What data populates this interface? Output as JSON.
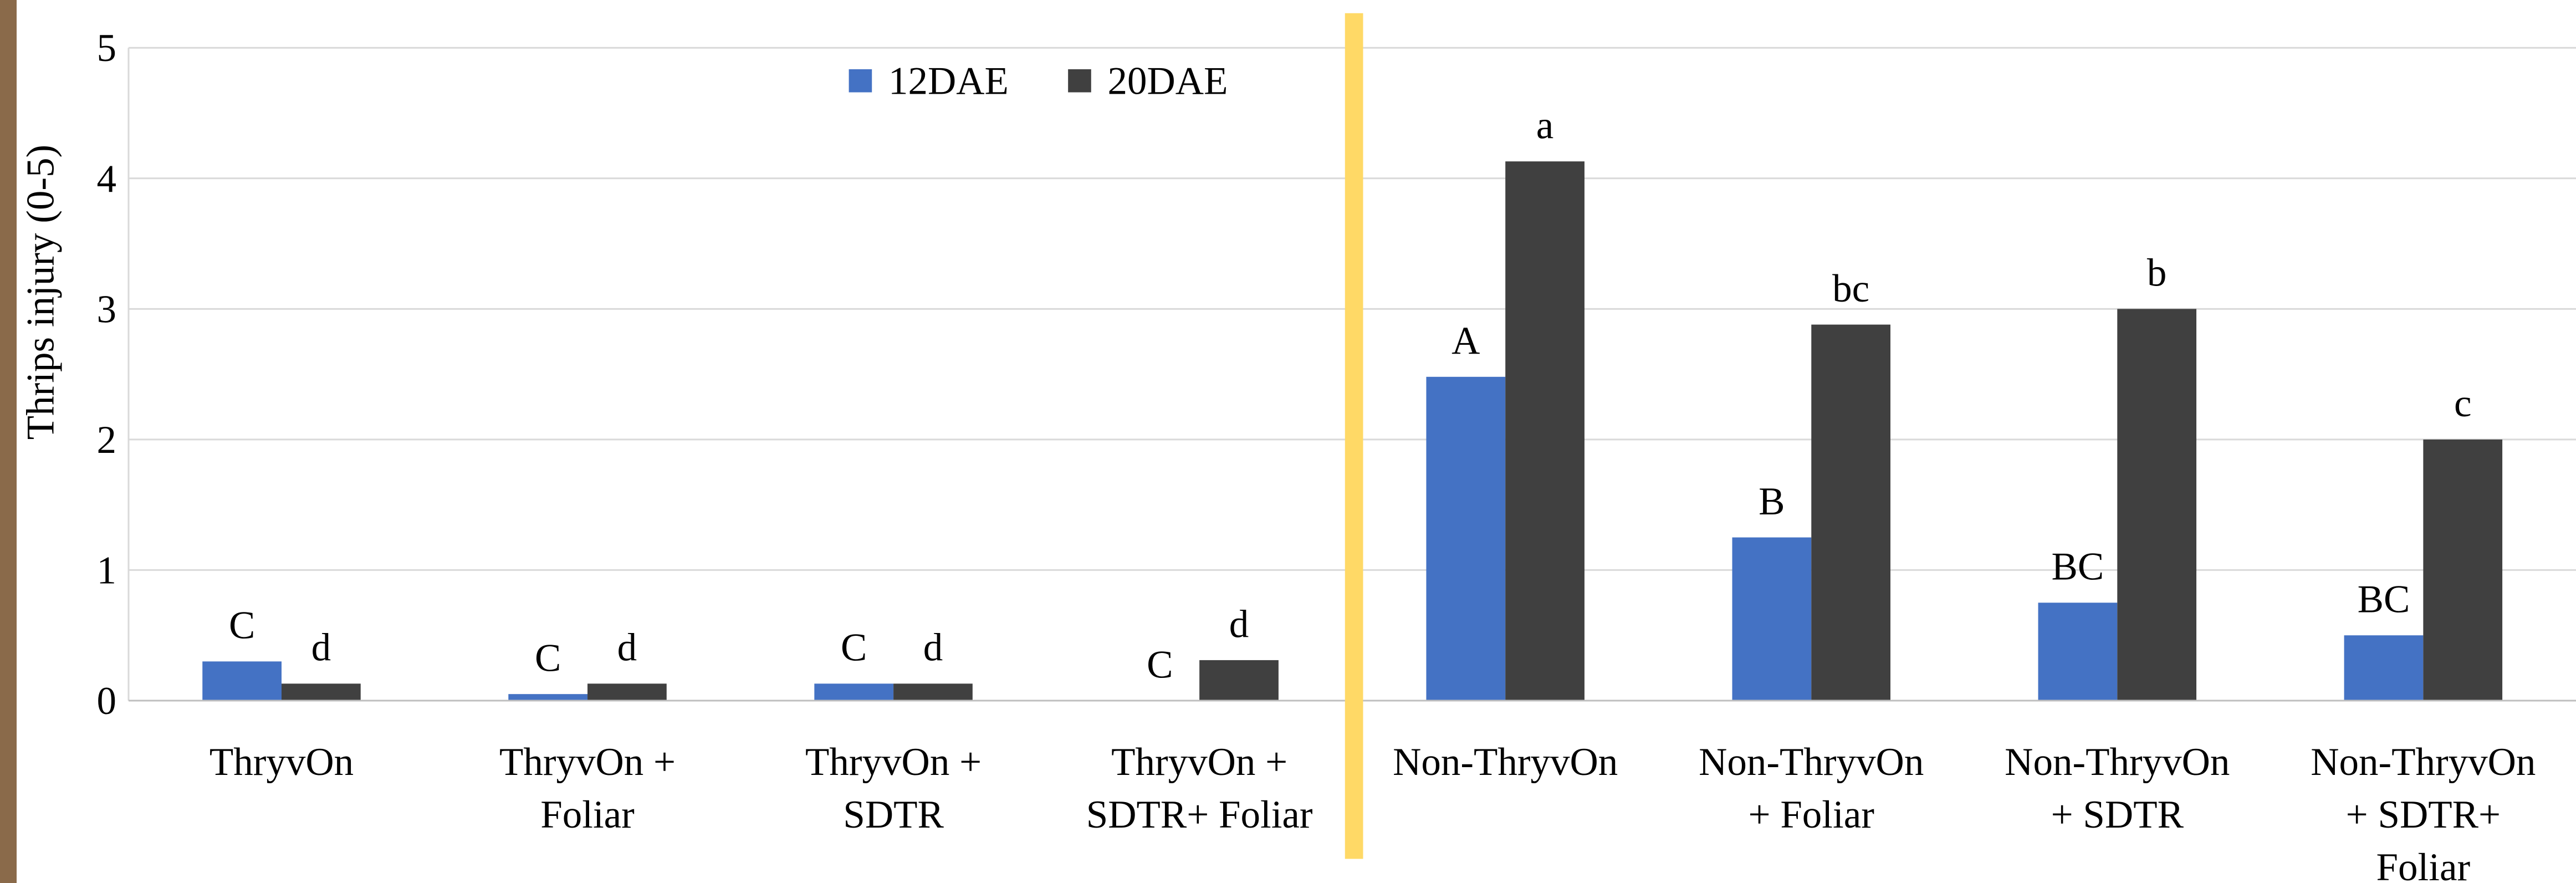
{
  "chart_data": {
    "type": "bar",
    "y_label": "Thrips injury (0-5)",
    "categories": [
      [
        "ThryvOn"
      ],
      [
        "ThryvOn +",
        "Foliar"
      ],
      [
        "ThryvOn +",
        "SDTR"
      ],
      [
        "ThryvOn +",
        "SDTR+ Foliar"
      ],
      [
        "Non-ThryvOn"
      ],
      [
        "Non-ThryvOn",
        "+ Foliar"
      ],
      [
        "Non-ThryvOn",
        "+ SDTR"
      ],
      [
        "Non-ThryvOn",
        "+ SDTR+",
        "Foliar"
      ]
    ],
    "series": [
      {
        "name": "12DAE",
        "color": "#4472c4",
        "values": [
          0.3,
          0.05,
          0.13,
          0,
          2.48,
          1.25,
          0.75,
          0.5
        ],
        "letters": [
          "C",
          "C",
          "C",
          "C",
          "A",
          "B",
          "BC",
          "BC"
        ]
      },
      {
        "name": "20DAE",
        "color": "#404040",
        "values": [
          0.13,
          0.13,
          0.13,
          0.31,
          4.13,
          2.88,
          3.0,
          2.0
        ],
        "letters": [
          "d",
          "d",
          "d",
          "d",
          "a",
          "bc",
          "b",
          "c"
        ]
      }
    ],
    "ylim": [
      0,
      5
    ],
    "yticks": [
      0,
      1,
      2,
      3,
      4,
      5
    ],
    "grid": true
  }
}
